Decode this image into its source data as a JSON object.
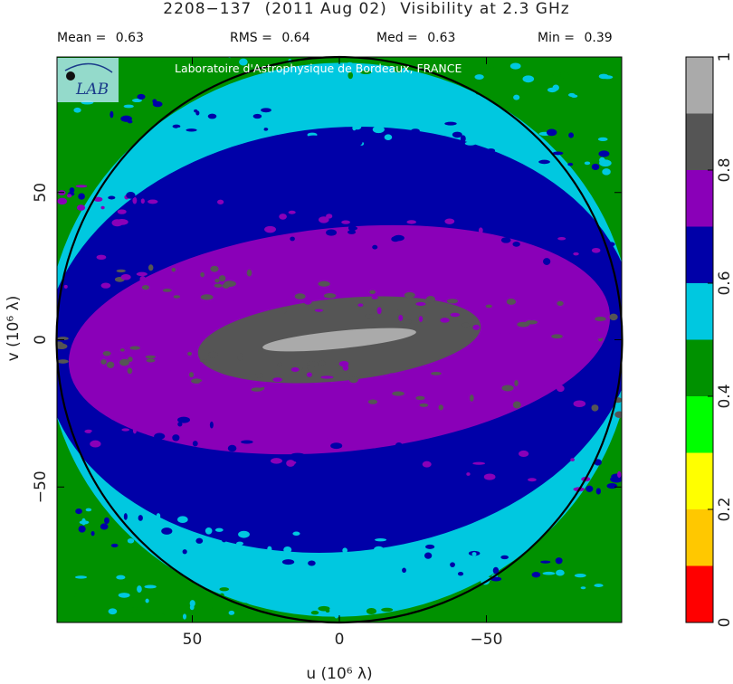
{
  "title": {
    "source": "2208−137",
    "date": "(2011 Aug 02)",
    "description": "Visibility at  2.3 GHz"
  },
  "stats": [
    {
      "label": "Mean =",
      "value": "0.63"
    },
    {
      "label": "RMS =",
      "value": "0.64"
    },
    {
      "label": "Med =",
      "value": "0.63"
    },
    {
      "label": "Min =",
      "value": "0.39"
    }
  ],
  "watermark": "Laboratoire d'Astrophysique de Bordeaux, FRANCE",
  "logo_text": "LAB",
  "chart_data": {
    "type": "heatmap",
    "title": "2208−137  (2011 Aug 02)  Visibility at  2.3 GHz",
    "xlabel": "u  (10⁶ λ)",
    "ylabel": "v  (10⁶ λ)",
    "x_ticks": [
      {
        "value": 50,
        "label": "50"
      },
      {
        "value": 0,
        "label": "0"
      },
      {
        "value": -50,
        "label": "−50"
      }
    ],
    "y_ticks": [
      {
        "value": 50,
        "label": "50"
      },
      {
        "value": 0,
        "label": "0"
      },
      {
        "value": -50,
        "label": "−50"
      }
    ],
    "xlim": [
      96,
      -96
    ],
    "ylim": [
      -96,
      96
    ],
    "x_reversed": true,
    "circle_radius": 96,
    "colorbar": {
      "min": 0,
      "max": 1,
      "ticks": [
        {
          "value": 0,
          "label": "0"
        },
        {
          "value": 0.2,
          "label": "0.2"
        },
        {
          "value": 0.4,
          "label": "0.4"
        },
        {
          "value": 0.6,
          "label": "0.6"
        },
        {
          "value": 0.8,
          "label": "0.8"
        },
        {
          "value": 1,
          "label": "1"
        }
      ],
      "levels": [
        {
          "from": 0.0,
          "to": 0.1,
          "color": "#ff0000"
        },
        {
          "from": 0.1,
          "to": 0.2,
          "color": "#ffc800"
        },
        {
          "from": 0.2,
          "to": 0.3,
          "color": "#ffff00"
        },
        {
          "from": 0.3,
          "to": 0.4,
          "color": "#00ff00"
        },
        {
          "from": 0.4,
          "to": 0.5,
          "color": "#009100"
        },
        {
          "from": 0.5,
          "to": 0.6,
          "color": "#00c8e0"
        },
        {
          "from": 0.6,
          "to": 0.7,
          "color": "#0000a8"
        },
        {
          "from": 0.7,
          "to": 0.8,
          "color": "#8a00b8"
        },
        {
          "from": 0.8,
          "to": 0.9,
          "color": "#555555"
        },
        {
          "from": 0.9,
          "to": 1.0,
          "color": "#aaaaaa"
        }
      ]
    },
    "bands": [
      {
        "level": "0.4-0.5",
        "color": "#009100",
        "offset": 999
      },
      {
        "level": "0.5-0.6",
        "color": "#00c8e0",
        "offset": 94
      },
      {
        "level": "0.6-0.7",
        "color": "#0000a8",
        "offset": 72
      },
      {
        "level": "0.7-0.8",
        "color": "#8a00b8",
        "offset": 38
      },
      {
        "level": "0.8-0.9",
        "color": "#555555",
        "offset": 14
      },
      {
        "level": "0.9-1.0",
        "color": "#aaaaaa",
        "offset": 3
      }
    ],
    "band_tilt_v_per_u": 0.1,
    "band_length_scale": [
      95,
      95,
      96,
      88,
      46,
      25
    ]
  }
}
